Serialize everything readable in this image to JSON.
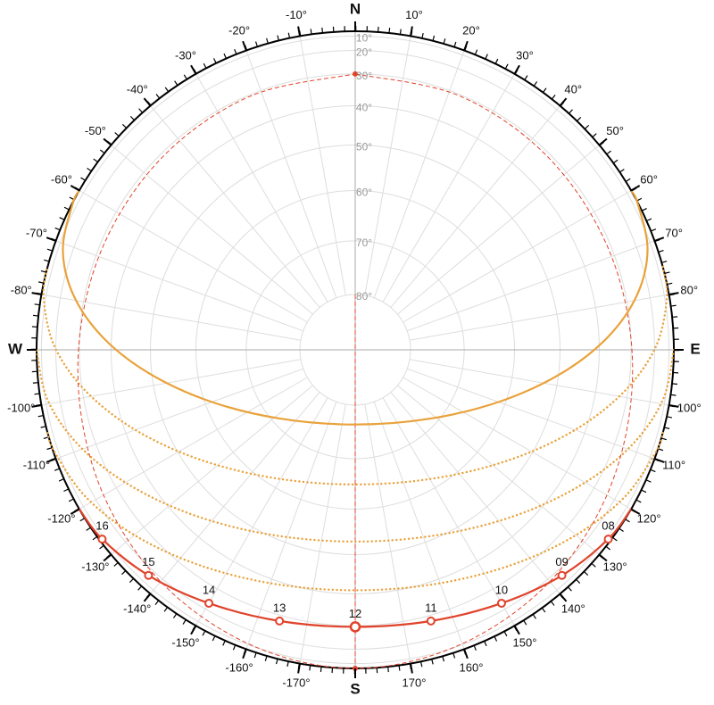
{
  "chart_data": {
    "type": "sunpath",
    "altitude_ticks": [
      {
        "value": 10,
        "label": "10°"
      },
      {
        "value": 20,
        "label": "20°"
      },
      {
        "value": 30,
        "label": "30°"
      },
      {
        "value": 40,
        "label": "40°"
      },
      {
        "value": 50,
        "label": "50°"
      },
      {
        "value": 60,
        "label": "60°"
      },
      {
        "value": 70,
        "label": "70°"
      },
      {
        "value": 80,
        "label": "80°"
      }
    ],
    "cardinal_ticks": [
      {
        "value": 0,
        "label": "N"
      },
      {
        "value": 90,
        "label": "E"
      },
      {
        "value": 180,
        "label": "S"
      },
      {
        "value": -90,
        "label": "W"
      }
    ],
    "azimuth_ticks": [
      {
        "value": 10,
        "label": "10°"
      },
      {
        "value": 20,
        "label": "20°"
      },
      {
        "value": 30,
        "label": "30°"
      },
      {
        "value": 40,
        "label": "40°"
      },
      {
        "value": 50,
        "label": "50°"
      },
      {
        "value": 60,
        "label": "60°"
      },
      {
        "value": 70,
        "label": "70°"
      },
      {
        "value": 80,
        "label": "80°"
      },
      {
        "value": 100,
        "label": "100°"
      },
      {
        "value": 110,
        "label": "110°"
      },
      {
        "value": 120,
        "label": "120°"
      },
      {
        "value": 130,
        "label": "130°"
      },
      {
        "value": 140,
        "label": "140°"
      },
      {
        "value": 150,
        "label": "150°"
      },
      {
        "value": 160,
        "label": "160°"
      },
      {
        "value": 170,
        "label": "170°"
      },
      {
        "value": -10,
        "label": "-10°"
      },
      {
        "value": -20,
        "label": "-20°"
      },
      {
        "value": -30,
        "label": "-30°"
      },
      {
        "value": -40,
        "label": "-40°"
      },
      {
        "value": -50,
        "label": "-50°"
      },
      {
        "value": -60,
        "label": "-60°"
      },
      {
        "value": -70,
        "label": "-70°"
      },
      {
        "value": -80,
        "label": "-80°"
      },
      {
        "value": -100,
        "label": "-100°"
      },
      {
        "value": -110,
        "label": "-110°"
      },
      {
        "value": -120,
        "label": "-120°"
      },
      {
        "value": -130,
        "label": "-130°"
      },
      {
        "value": -140,
        "label": "-140°"
      },
      {
        "value": -150,
        "label": "-150°"
      },
      {
        "value": -160,
        "label": "-160°"
      },
      {
        "value": -170,
        "label": "-170°"
      }
    ],
    "paths": [
      {
        "color": "#e9a23b",
        "style": "dotted",
        "azimuth": [
          74.9,
          80.4,
          89.2,
          98.6,
          109.9,
          125.1,
          147.8,
          180,
          -147.8,
          -125.1,
          -109.9,
          -98.6,
          -89.2,
          -80.4,
          -74.9
        ],
        "altitude": [
          0,
          7.19,
          19.1,
          31.05,
          42.64,
          53.27,
          61.59,
          65.0,
          61.59,
          53.27,
          42.64,
          31.05,
          19.1,
          7.19,
          0
        ]
      },
      {
        "color": "#e9a23b",
        "style": "dotted",
        "azimuth": [
          90,
          99.2,
          109.2,
          121.0,
          136.2,
          156.0,
          180,
          -156.0,
          -136.2,
          -121.0,
          -109.2,
          -99.2,
          -90
        ],
        "altitude": [
          0,
          11.93,
          23.53,
          34.38,
          43.76,
          50.48,
          53.0,
          50.48,
          43.76,
          34.38,
          23.53,
          11.93,
          0
        ]
      },
      {
        "color": "#e9a23b",
        "style": "dotted",
        "azimuth": [
          105.1,
          108.6,
          118.5,
          130.1,
          144.1,
          161.0,
          180,
          -161.0,
          -144.1,
          -130.1,
          -118.5,
          -108.6,
          -105.1
        ],
        "altitude": [
          0,
          4.42,
          15.4,
          25.29,
          33.46,
          39.0,
          41.0,
          39.0,
          33.46,
          25.29,
          15.4,
          4.42,
          0
        ]
      },
      {
        "color": "#e0432b",
        "style": "dashed",
        "azimuth": [
          0,
          22.8,
          46.1,
          70.1,
          94.2,
          117.6,
          139.5,
          160.2,
          180,
          -160.2,
          -139.5,
          -117.6,
          -94.2,
          -70.1,
          -46.1,
          -22.8,
          0
        ],
        "altitude": [
          30,
          30.5,
          31.2,
          31.1,
          29.2,
          24.8,
          18.4,
          10.9,
          0,
          10.9,
          18.4,
          24.8,
          29.2,
          31.1,
          31.2,
          30.5,
          30
        ]
      },
      {
        "color": "#e9a23b",
        "style": "solid",
        "azimuth": [
          60.1,
          62.5,
          70.9,
          78.8,
          87.0,
          96.4,
          109.3,
          132.2,
          180,
          -132.2,
          -109.3,
          -96.4,
          -87.0,
          -78.8,
          -70.9,
          -62.5,
          -60.1
        ],
        "altitude": [
          0,
          2.85,
          13.85,
          25.4,
          37.29,
          49.24,
          60.91,
          71.28,
          76.44,
          71.28,
          60.91,
          49.24,
          37.29,
          25.4,
          13.85,
          2.85,
          0
        ]
      },
      {
        "color": "#e0432b",
        "style": "solid",
        "azimuth": [
          119.9,
          126.8,
          137.5,
          150.0,
          164.4,
          180,
          -164.4,
          -150.0,
          -137.5,
          -126.8,
          -119.9
        ],
        "altitude": [
          0,
          7.3,
          16.2,
          23.3,
          27.9,
          29.6,
          27.9,
          23.3,
          16.2,
          7.3,
          0
        ],
        "hour_labels": [
          null,
          "08",
          "09",
          "10",
          "11",
          "12",
          "13",
          "14",
          "15",
          "16",
          null
        ]
      }
    ],
    "points": {
      "color": "#e0432b",
      "azimuth": [
        0,
        180
      ],
      "altitude": [
        30,
        0
      ]
    }
  }
}
